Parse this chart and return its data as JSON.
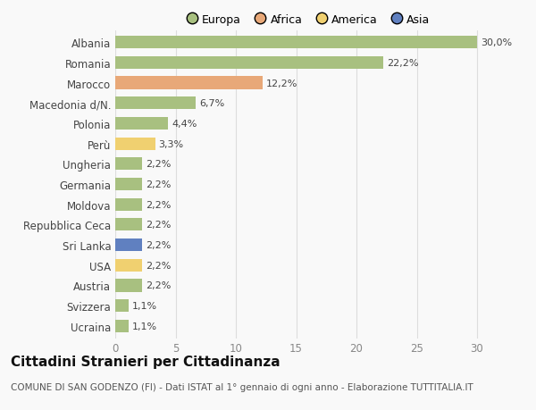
{
  "countries": [
    "Albania",
    "Romania",
    "Marocco",
    "Macedonia d/N.",
    "Polonia",
    "Perù",
    "Ungheria",
    "Germania",
    "Moldova",
    "Repubblica Ceca",
    "Sri Lanka",
    "USA",
    "Austria",
    "Svizzera",
    "Ucraina"
  ],
  "values": [
    30.0,
    22.2,
    12.2,
    6.7,
    4.4,
    3.3,
    2.2,
    2.2,
    2.2,
    2.2,
    2.2,
    2.2,
    2.2,
    1.1,
    1.1
  ],
  "labels": [
    "30,0%",
    "22,2%",
    "12,2%",
    "6,7%",
    "4,4%",
    "3,3%",
    "2,2%",
    "2,2%",
    "2,2%",
    "2,2%",
    "2,2%",
    "2,2%",
    "2,2%",
    "1,1%",
    "1,1%"
  ],
  "colors": [
    "#a8c080",
    "#a8c080",
    "#e8a878",
    "#a8c080",
    "#a8c080",
    "#f0d070",
    "#a8c080",
    "#a8c080",
    "#a8c080",
    "#a8c080",
    "#6080c0",
    "#f0d070",
    "#a8c080",
    "#a8c080",
    "#a8c080"
  ],
  "legend": {
    "Europa": "#a8c080",
    "Africa": "#e8a878",
    "America": "#f0d070",
    "Asia": "#6080c0"
  },
  "title": "Cittadini Stranieri per Cittadinanza",
  "subtitle": "COMUNE DI SAN GODENZO (FI) - Dati ISTAT al 1° gennaio di ogni anno - Elaborazione TUTTITALIA.IT",
  "xlim": [
    0,
    32
  ],
  "xticks": [
    0,
    5,
    10,
    15,
    20,
    25,
    30
  ],
  "bg_color": "#f9f9f9",
  "grid_color": "#dddddd",
  "title_fontsize": 11,
  "subtitle_fontsize": 7.5,
  "label_fontsize": 8,
  "tick_fontsize": 8.5,
  "legend_fontsize": 9
}
